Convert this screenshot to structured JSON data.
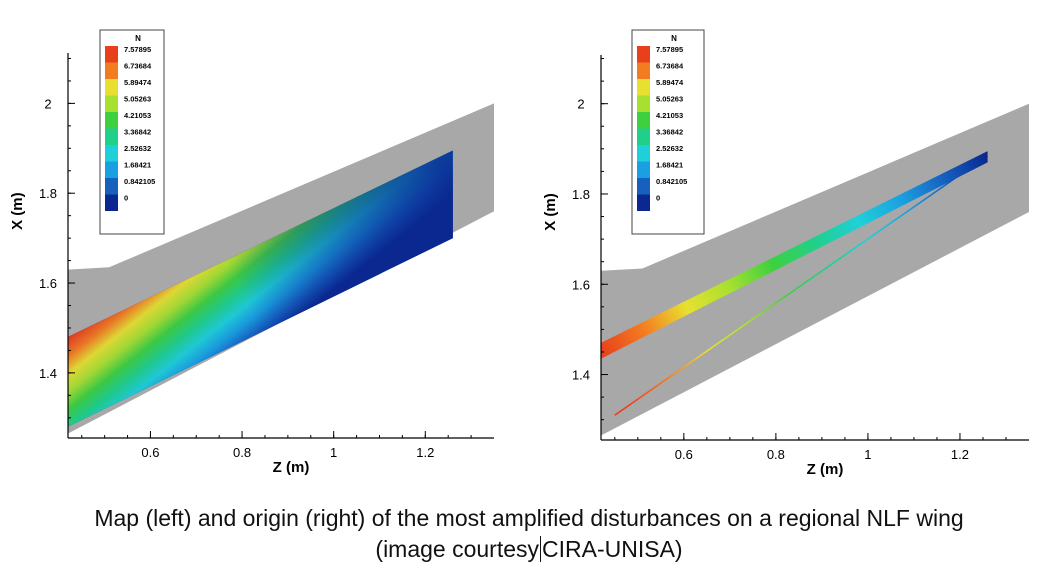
{
  "chart_data": [
    {
      "type": "contour",
      "panel": "left",
      "xlabel": "Z (m)",
      "ylabel": "X (m)",
      "xticks": [
        "0.6",
        "0.8",
        "1",
        "1.2"
      ],
      "yticks": [
        "1.4",
        "1.6",
        "1.8",
        "2"
      ],
      "xlim": [
        0.42,
        1.35
      ],
      "ylim": [
        1.255,
        2.13
      ],
      "legend": {
        "title": "N",
        "placement": "top-left",
        "levels": [
          "7.57895",
          "6.73684",
          "5.89474",
          "5.05263",
          "4.21053",
          "3.36842",
          "2.52632",
          "1.68421",
          "0.842105",
          "0"
        ],
        "colors": [
          "#e8401c",
          "#f47c20",
          "#e8e030",
          "#a8e030",
          "#3fd040",
          "#20d08a",
          "#20d0d8",
          "#1aa0e0",
          "#1660c0",
          "#0a2890"
        ]
      },
      "wing_outline": [
        [
          0.42,
          1.63
        ],
        [
          0.51,
          1.635
        ],
        [
          1.35,
          2.0
        ],
        [
          1.35,
          1.76
        ],
        [
          0.42,
          1.265
        ]
      ],
      "contour_region": [
        [
          0.42,
          1.48
        ],
        [
          1.26,
          1.895
        ],
        [
          1.26,
          1.7
        ],
        [
          0.42,
          1.28
        ]
      ]
    },
    {
      "type": "contour",
      "panel": "right",
      "xlabel": "Z (m)",
      "ylabel": "X (m)",
      "xticks": [
        "0.6",
        "0.8",
        "1",
        "1.2"
      ],
      "yticks": [
        "1.4",
        "1.6",
        "1.8",
        "2"
      ],
      "xlim": [
        0.42,
        1.35
      ],
      "ylim": [
        1.255,
        2.13
      ],
      "legend": {
        "title": "N",
        "placement": "top-left",
        "levels": [
          "7.57895",
          "6.73684",
          "5.89474",
          "5.05263",
          "4.21053",
          "3.36842",
          "2.52632",
          "1.68421",
          "0.842105",
          "0"
        ],
        "colors": [
          "#e8401c",
          "#f47c20",
          "#e8e030",
          "#a8e030",
          "#3fd040",
          "#20d08a",
          "#20d0d8",
          "#1aa0e0",
          "#1660c0",
          "#0a2890"
        ]
      },
      "wing_outline": [
        [
          0.42,
          1.63
        ],
        [
          0.51,
          1.635
        ],
        [
          1.35,
          2.0
        ],
        [
          1.35,
          1.76
        ],
        [
          0.42,
          1.265
        ]
      ],
      "band": [
        [
          0.42,
          1.47
        ],
        [
          1.26,
          1.895
        ],
        [
          1.26,
          1.87
        ],
        [
          0.42,
          1.435
        ]
      ],
      "origin_line": [
        [
          0.45,
          1.31
        ],
        [
          1.26,
          1.885
        ]
      ]
    }
  ],
  "caption": {
    "line1": "Map (left) and origin (right) of the most amplified disturbances on a regional NLF wing",
    "line2_before": "(image courtesy",
    "line2_after": "CIRA-UNISA)"
  }
}
